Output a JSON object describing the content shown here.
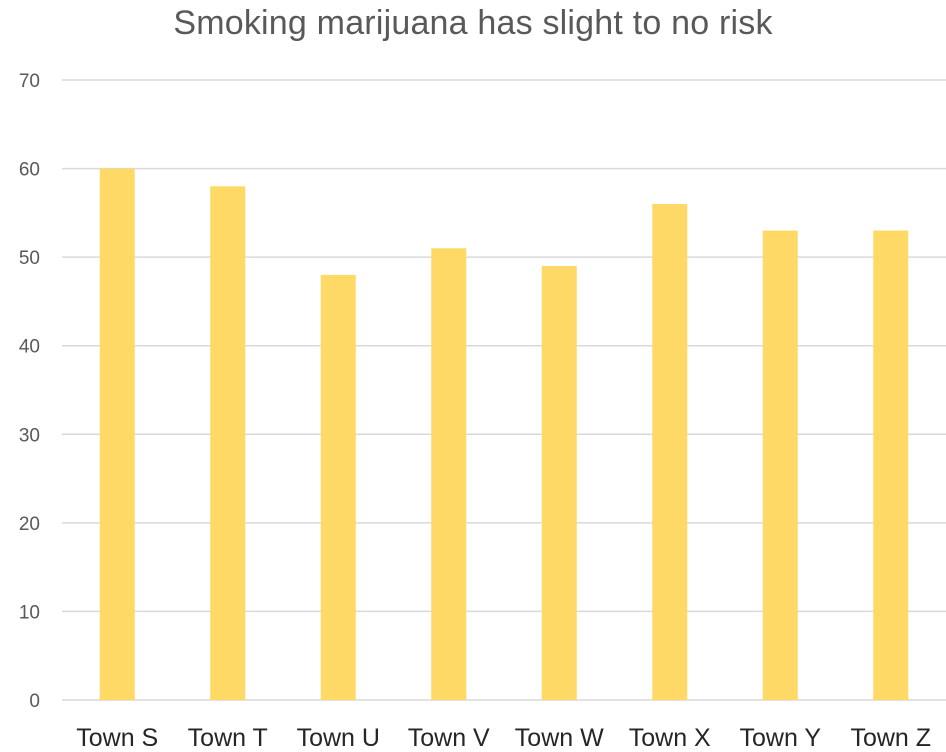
{
  "chart_data": {
    "type": "bar",
    "title": "Smoking marijuana has slight to no risk",
    "xlabel": "",
    "ylabel": "",
    "categories": [
      "Town S",
      "Town T",
      "Town U",
      "Town V",
      "Town W",
      "Town X",
      "Town Y",
      "Town Z"
    ],
    "values": [
      60,
      58,
      48,
      51,
      49,
      56,
      53,
      53
    ],
    "ylim": [
      0,
      70
    ],
    "yticks": [
      "0",
      "10",
      "20",
      "30",
      "40",
      "50",
      "60",
      "70"
    ],
    "grid": true,
    "legend": "none",
    "bar_color": "#FFD966"
  }
}
